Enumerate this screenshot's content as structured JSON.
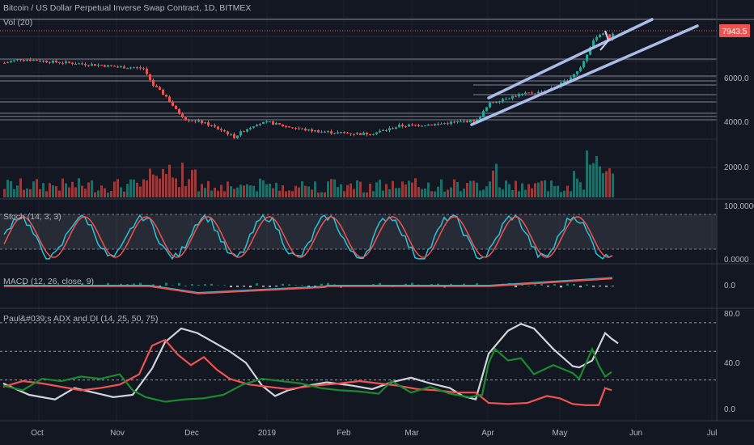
{
  "header": {
    "title": "Bitcoin / US Dollar Perpetual Inverse Swap Contract, 1D, BITMEX",
    "volume_label": "Vol (20)"
  },
  "price_tag": {
    "value": "7943.5",
    "color": "#ef5350"
  },
  "colors": {
    "background": "#131722",
    "up": "#26a69a",
    "down": "#ef5350",
    "grid": "#2a2e39",
    "trendline": "#a9bde8"
  },
  "chart_data": [
    {
      "panel": "price",
      "type": "candlestick",
      "y_ticks": [
        "6000.0",
        "4000.0",
        "2000.0"
      ],
      "ylim": [
        3000,
        8500
      ],
      "x_tick_labels": [
        "Oct",
        "Nov",
        "Dec",
        "2019",
        "Feb",
        "Mar",
        "Apr",
        "May",
        "Jun",
        "Jul"
      ],
      "close_path": [
        [
          0,
          6600
        ],
        [
          5,
          6780
        ],
        [
          10,
          6720
        ],
        [
          15,
          6650
        ],
        [
          20,
          6600
        ],
        [
          25,
          6550
        ],
        [
          30,
          6500
        ],
        [
          35,
          6420
        ],
        [
          40,
          6400
        ],
        [
          43,
          6350
        ],
        [
          46,
          5600
        ],
        [
          50,
          5100
        ],
        [
          53,
          4500
        ],
        [
          56,
          4100
        ],
        [
          60,
          4000
        ],
        [
          64,
          3800
        ],
        [
          68,
          3550
        ],
        [
          71,
          3300
        ],
        [
          74,
          3600
        ],
        [
          78,
          3900
        ],
        [
          82,
          3950
        ],
        [
          86,
          3800
        ],
        [
          90,
          3700
        ],
        [
          94,
          3600
        ],
        [
          98,
          3550
        ],
        [
          102,
          3500
        ],
        [
          106,
          3480
        ],
        [
          110,
          3440
        ],
        [
          114,
          3480
        ],
        [
          118,
          3620
        ],
        [
          122,
          3800
        ],
        [
          126,
          3820
        ],
        [
          130,
          3850
        ],
        [
          134,
          3880
        ],
        [
          138,
          3950
        ],
        [
          142,
          4000
        ],
        [
          146,
          4050
        ],
        [
          150,
          4800
        ],
        [
          154,
          5000
        ],
        [
          158,
          5150
        ],
        [
          162,
          5250
        ],
        [
          166,
          5300
        ],
        [
          170,
          5500
        ],
        [
          174,
          5850
        ],
        [
          178,
          6400
        ],
        [
          181,
          7300
        ],
        [
          183,
          7800
        ],
        [
          185,
          7950
        ],
        [
          187,
          7700
        ],
        [
          188,
          7943
        ]
      ]
    },
    {
      "panel": "volume",
      "type": "bar",
      "label": "Vol (20)"
    },
    {
      "panel": "stoch",
      "type": "line",
      "label": "Stoch (14, 3, 3)",
      "y_ticks": [
        "100.0000",
        "0.0000"
      ],
      "ylim": [
        0,
        100
      ],
      "bands": [
        20,
        80
      ]
    },
    {
      "panel": "macd",
      "type": "line",
      "label": "MACD (12, 26, close, 9)",
      "y_ticks": [
        "0.0"
      ]
    },
    {
      "panel": "adx",
      "type": "line",
      "label": "Paul&#039;s ADX and DI (14, 25, 50, 75)",
      "y_ticks": [
        "80.0",
        "40.0",
        "0.0"
      ],
      "ylim": [
        0,
        80
      ],
      "levels": [
        25,
        50,
        75
      ],
      "series": [
        {
          "color": "#d1d4dc",
          "points": [
            [
              0,
              22
            ],
            [
              8,
              12
            ],
            [
              16,
              8
            ],
            [
              22,
              18
            ],
            [
              28,
              14
            ],
            [
              34,
              10
            ],
            [
              40,
              12
            ],
            [
              46,
              35
            ],
            [
              50,
              58
            ],
            [
              55,
              70
            ],
            [
              60,
              66
            ],
            [
              65,
              58
            ],
            [
              70,
              50
            ],
            [
              75,
              40
            ],
            [
              80,
              20
            ],
            [
              84,
              11
            ],
            [
              88,
              16
            ],
            [
              94,
              20
            ],
            [
              100,
              23
            ],
            [
              108,
              20
            ],
            [
              114,
              17
            ],
            [
              120,
              23
            ],
            [
              126,
              27
            ],
            [
              132,
              22
            ],
            [
              138,
              18
            ],
            [
              142,
              11
            ],
            [
              146,
              8
            ],
            [
              150,
              48
            ],
            [
              156,
              68
            ],
            [
              160,
              74
            ],
            [
              164,
              70
            ],
            [
              170,
              52
            ],
            [
              176,
              37
            ],
            [
              178,
              36
            ],
            [
              182,
              42
            ],
            [
              186,
              66
            ],
            [
              188,
              61
            ],
            [
              190,
              57
            ]
          ]
        },
        {
          "color": "#ef5350",
          "points": [
            [
              0,
              19
            ],
            [
              6,
              24
            ],
            [
              12,
              22
            ],
            [
              18,
              19
            ],
            [
              24,
              16
            ],
            [
              30,
              18
            ],
            [
              36,
              21
            ],
            [
              42,
              30
            ],
            [
              46,
              55
            ],
            [
              50,
              60
            ],
            [
              54,
              47
            ],
            [
              58,
              38
            ],
            [
              62,
              45
            ],
            [
              66,
              34
            ],
            [
              70,
              26
            ],
            [
              76,
              21
            ],
            [
              82,
              19
            ],
            [
              88,
              17
            ],
            [
              96,
              20
            ],
            [
              104,
              22
            ],
            [
              110,
              24
            ],
            [
              116,
              22
            ],
            [
              122,
              20
            ],
            [
              128,
              17
            ],
            [
              134,
              16
            ],
            [
              140,
              14
            ],
            [
              146,
              14
            ],
            [
              150,
              5
            ],
            [
              156,
              4
            ],
            [
              162,
              5
            ],
            [
              168,
              11
            ],
            [
              172,
              9
            ],
            [
              176,
              4
            ],
            [
              180,
              3
            ],
            [
              184,
              3
            ],
            [
              186,
              18
            ],
            [
              188,
              16
            ]
          ]
        },
        {
          "color": "#1b8a2e",
          "points": [
            [
              0,
              20
            ],
            [
              6,
              16
            ],
            [
              12,
              26
            ],
            [
              18,
              24
            ],
            [
              24,
              28
            ],
            [
              30,
              26
            ],
            [
              36,
              30
            ],
            [
              40,
              16
            ],
            [
              44,
              10
            ],
            [
              50,
              6
            ],
            [
              56,
              8
            ],
            [
              62,
              9
            ],
            [
              68,
              12
            ],
            [
              74,
              21
            ],
            [
              80,
              26
            ],
            [
              86,
              24
            ],
            [
              92,
              22
            ],
            [
              98,
              18
            ],
            [
              104,
              16
            ],
            [
              110,
              15
            ],
            [
              116,
              13
            ],
            [
              120,
              24
            ],
            [
              126,
              14
            ],
            [
              132,
              19
            ],
            [
              138,
              13
            ],
            [
              144,
              10
            ],
            [
              148,
              12
            ],
            [
              150,
              40
            ],
            [
              152,
              52
            ],
            [
              156,
              42
            ],
            [
              160,
              44
            ],
            [
              164,
              30
            ],
            [
              170,
              38
            ],
            [
              176,
              31
            ],
            [
              178,
              26
            ],
            [
              182,
              52
            ],
            [
              184,
              38
            ],
            [
              186,
              28
            ],
            [
              188,
              32
            ]
          ]
        }
      ]
    }
  ]
}
